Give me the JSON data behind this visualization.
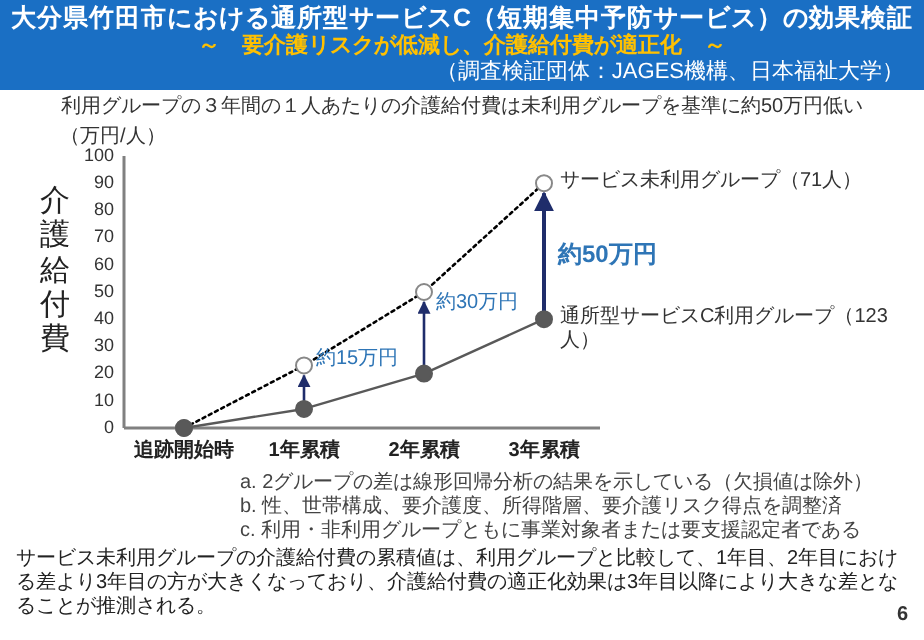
{
  "chart_data": {
    "type": "line",
    "title": "大分県竹田市における通所型サービスC（短期集中予防サービス）の効果検証",
    "subtitle": "～　要介護リスクが低減し、介護給付費が適正化　～",
    "ylabel": "介護給付費",
    "categories": [
      "追跡開始時",
      "1年累積",
      "2年累積",
      "3年累積"
    ],
    "series": [
      {
        "name": "サービス未利用グループ（71人）",
        "color": "#000000",
        "line_style": "dotted",
        "values": [
          0,
          23,
          50,
          90
        ]
      },
      {
        "name": "通所型サービスC利用グループ（123人）",
        "color": "#595959",
        "line_style": "solid",
        "values": [
          0,
          7,
          20,
          40
        ]
      }
    ],
    "ylim": [
      0,
      100
    ],
    "yticks": [
      0,
      10,
      20,
      30,
      40,
      50,
      60,
      70,
      80,
      90,
      100
    ],
    "marker": "circle",
    "grid": false,
    "annotations": [
      "（調査検証団体：JAGES機構、日本福祉大学）",
      "利用グループの３年間の１人あたりの介護給付費は未利用グループを基準に約50万円低い",
      "（万円/人）",
      "a.  2グループの差は線形回帰分析の結果を示している（欠損値は除外）",
      "b.  性、世帯構成、要介護度、所得階層、要介護リスク得点を調整済",
      "c.  利用・非利用グループともに事業対象者または要支援認定者である",
      "サービス未利用グループの介護給付費の累積値は、利用グループと比較して、1年目、2年目における差より3年目の方が大きくなっており、介護給付費の適正化効果は3年目以降により大きな差となることが推測される。",
      "6",
      {
        "text": "約15万円",
        "x": "1年累積",
        "y": 24
      },
      {
        "text": "約30万円",
        "x": "2年累積",
        "y": 45
      },
      "約50万円"
    ]
  }
}
